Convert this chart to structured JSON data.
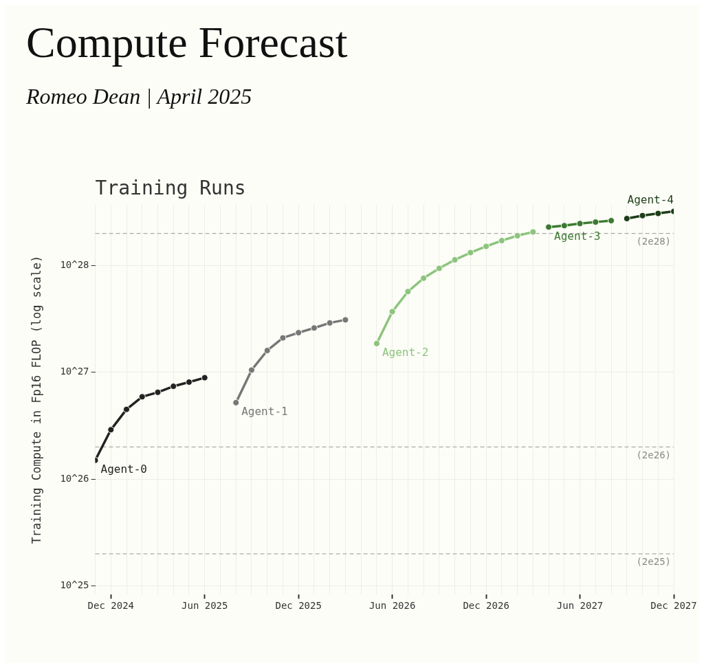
{
  "chart_data": {
    "type": "line",
    "title": "Compute Forecast",
    "subtitle": "Romeo Dean | April 2025",
    "annotations": [
      "Training Runs"
    ],
    "ylabel": "Training Compute in Fp16 FLOP (log scale)",
    "log": true,
    "grid": true,
    "legend": false,
    "marker": "circle",
    "line_style": "solid",
    "xlim": [
      "2024-11",
      "2027-12"
    ],
    "xticks": [
      {
        "value": "2024-11",
        "label": null
      },
      {
        "value": "2024-12",
        "label": "Dec 2024"
      },
      {
        "value": "2025-01",
        "label": null
      },
      {
        "value": "2025-02",
        "label": null
      },
      {
        "value": "2025-03",
        "label": null
      },
      {
        "value": "2025-04",
        "label": null
      },
      {
        "value": "2025-05",
        "label": null
      },
      {
        "value": "2025-06",
        "label": "Jun 2025"
      },
      {
        "value": "2025-07",
        "label": null
      },
      {
        "value": "2025-08",
        "label": null
      },
      {
        "value": "2025-09",
        "label": null
      },
      {
        "value": "2025-10",
        "label": null
      },
      {
        "value": "2025-11",
        "label": null
      },
      {
        "value": "2025-12",
        "label": "Dec 2025"
      },
      {
        "value": "2026-01",
        "label": null
      },
      {
        "value": "2026-02",
        "label": null
      },
      {
        "value": "2026-03",
        "label": null
      },
      {
        "value": "2026-04",
        "label": null
      },
      {
        "value": "2026-05",
        "label": null
      },
      {
        "value": "2026-06",
        "label": "Jun 2026"
      },
      {
        "value": "2026-07",
        "label": null
      },
      {
        "value": "2026-08",
        "label": null
      },
      {
        "value": "2026-09",
        "label": null
      },
      {
        "value": "2026-10",
        "label": null
      },
      {
        "value": "2026-11",
        "label": null
      },
      {
        "value": "2026-12",
        "label": "Dec 2026"
      },
      {
        "value": "2027-01",
        "label": null
      },
      {
        "value": "2027-02",
        "label": null
      },
      {
        "value": "2027-03",
        "label": null
      },
      {
        "value": "2027-04",
        "label": null
      },
      {
        "value": "2027-05",
        "label": null
      },
      {
        "value": "2027-06",
        "label": "Jun 2027"
      },
      {
        "value": "2027-07",
        "label": null
      },
      {
        "value": "2027-08",
        "label": null
      },
      {
        "value": "2027-09",
        "label": null
      },
      {
        "value": "2027-10",
        "label": null
      },
      {
        "value": "2027-11",
        "label": null
      },
      {
        "value": "2027-12",
        "label": "Dec 2027"
      }
    ],
    "ylim": [
      8.3e+24,
      3.7e+28
    ],
    "yticks": [
      {
        "value": 1e+25,
        "label": "10^25"
      },
      {
        "value": 1e+26,
        "label": "10^26"
      },
      {
        "value": 1e+27,
        "label": "10^27"
      },
      {
        "value": 1e+28,
        "label": "10^28"
      }
    ],
    "series": [
      {
        "name": "Agent-0",
        "color": "#222222",
        "x": [
          "2024-11",
          "2024-12",
          "2025-01",
          "2025-02",
          "2025-03",
          "2025-04",
          "2025-05",
          "2025-06"
        ],
        "values": [
          1.5e+26,
          2.9e+26,
          4.5e+26,
          5.9e+26,
          6.5e+26,
          7.4e+26,
          8.1e+26,
          8.9e+26
        ]
      },
      {
        "name": "Agent-1",
        "color": "#777777",
        "x": [
          "2025-08",
          "2025-09",
          "2025-10",
          "2025-11",
          "2025-12",
          "2026-01",
          "2026-02",
          "2026-03"
        ],
        "values": [
          5.2e+26,
          1.05e+27,
          1.6e+27,
          2.1e+27,
          2.35e+27,
          2.6e+27,
          2.9e+27,
          3.1e+27
        ]
      },
      {
        "name": "Agent-2",
        "color": "#8cc47e",
        "x": [
          "2026-05",
          "2026-06",
          "2026-07",
          "2026-08",
          "2026-09",
          "2026-10",
          "2026-11",
          "2026-12",
          "2027-01",
          "2027-02",
          "2027-03"
        ],
        "values": [
          1.86e+27,
          3.7e+27,
          5.7e+27,
          7.6e+27,
          9.4e+27,
          1.13e+28,
          1.32e+28,
          1.51e+28,
          1.71e+28,
          1.9e+28,
          2.06e+28
        ]
      },
      {
        "name": "Agent-3",
        "color": "#3c7a32",
        "x": [
          "2027-04",
          "2027-05",
          "2027-06",
          "2027-07",
          "2027-08"
        ],
        "values": [
          2.29e+28,
          2.36e+28,
          2.47e+28,
          2.55e+28,
          2.63e+28
        ]
      },
      {
        "name": "Agent-4",
        "color": "#1c3d17",
        "x": [
          "2027-09",
          "2027-10",
          "2027-11",
          "2027-12"
        ],
        "values": [
          2.75e+28,
          2.93e+28,
          3.07e+28,
          3.21e+28
        ]
      }
    ],
    "ref_lines": [
      {
        "axis": "y",
        "value": 2e+28,
        "label": "(2e28)",
        "color": "#aaaaaa",
        "line_style": "dashed"
      },
      {
        "axis": "y",
        "value": 2e+26,
        "label": "(2e26)",
        "color": "#aaaaaa",
        "line_style": "dashed"
      },
      {
        "axis": "y",
        "value": 2e+25,
        "label": "(2e25)",
        "color": "#aaaaaa",
        "line_style": "dashed"
      }
    ]
  }
}
